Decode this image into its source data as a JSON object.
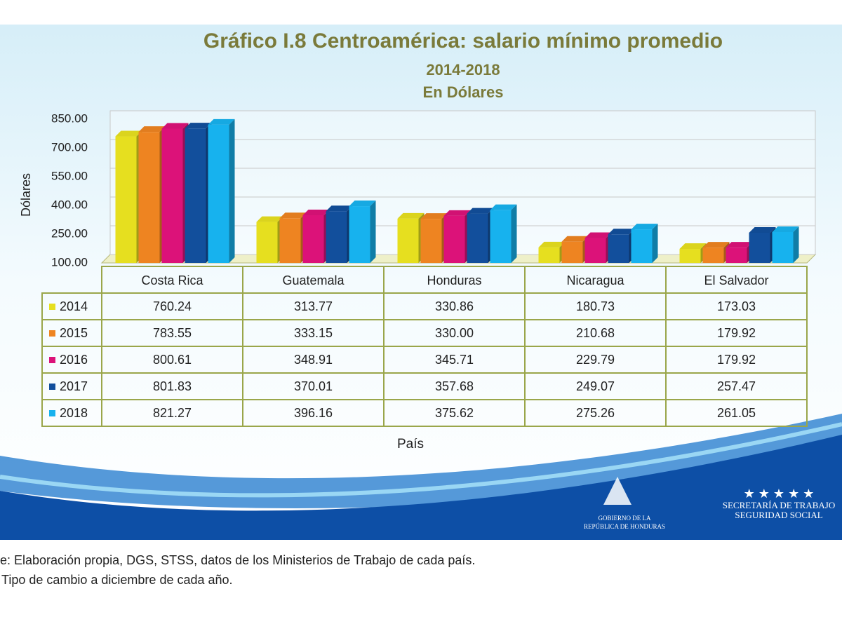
{
  "chart_data": {
    "type": "bar",
    "title": "Gráfico I.8 Centroamérica: salario mínimo promedio",
    "subtitle": "2014-2018",
    "unit_note": "En Dólares",
    "y_label": "Dólares",
    "x_label": "País",
    "categories": [
      "Costa Rica",
      "Guatemala",
      "Honduras",
      "Nicaragua",
      "El Salvador"
    ],
    "series": [
      {
        "name": "2014",
        "color": "#e6df1f",
        "values": [
          760.24,
          313.77,
          330.86,
          180.73,
          173.03
        ],
        "value_labels": [
          "760.24",
          "313.77",
          "330.86",
          "180.73",
          "173.03"
        ]
      },
      {
        "name": "2015",
        "color": "#ee8421",
        "values": [
          783.55,
          333.15,
          330.0,
          210.68,
          179.92
        ],
        "value_labels": [
          "783.55",
          "333.15",
          "330.00",
          "210.68",
          "179.92"
        ]
      },
      {
        "name": "2016",
        "color": "#dc1279",
        "values": [
          800.61,
          348.91,
          345.71,
          229.79,
          179.92
        ],
        "value_labels": [
          "800.61",
          "348.91",
          "345.71",
          "229.79",
          "179.92"
        ]
      },
      {
        "name": "2017",
        "color": "#124f9c",
        "values": [
          801.83,
          370.01,
          357.68,
          249.07,
          257.47
        ],
        "value_labels": [
          "801.83",
          "370.01",
          "357.68",
          "249.07",
          "257.47"
        ]
      },
      {
        "name": "2018",
        "color": "#17b2ee",
        "values": [
          821.27,
          396.16,
          375.62,
          275.26,
          261.05
        ],
        "value_labels": [
          "821.27",
          "396.16",
          "375.62",
          "275.26",
          "261.05"
        ]
      }
    ],
    "ylim": [
      100,
      850
    ],
    "yticks": [
      {
        "value": 100,
        "label": "100.00"
      },
      {
        "value": 250,
        "label": "250.00"
      },
      {
        "value": 400,
        "label": "400.00"
      },
      {
        "value": 550,
        "label": "550.00"
      },
      {
        "value": 700,
        "label": "700.00"
      },
      {
        "value": 850,
        "label": "850.00"
      }
    ],
    "grid": true,
    "source": "e: Elaboración propia, DGS, STSS, datos de los Ministerios de Trabajo  de cada país.",
    "note": "Tipo de cambio a diciembre de cada año.",
    "logos": [
      "GOBIERNO DE LA",
      "REPÚBLICA DE HONDURAS",
      "SECRETARÍA DE TRABAJO",
      "SEGURIDAD SOCIAL"
    ]
  }
}
